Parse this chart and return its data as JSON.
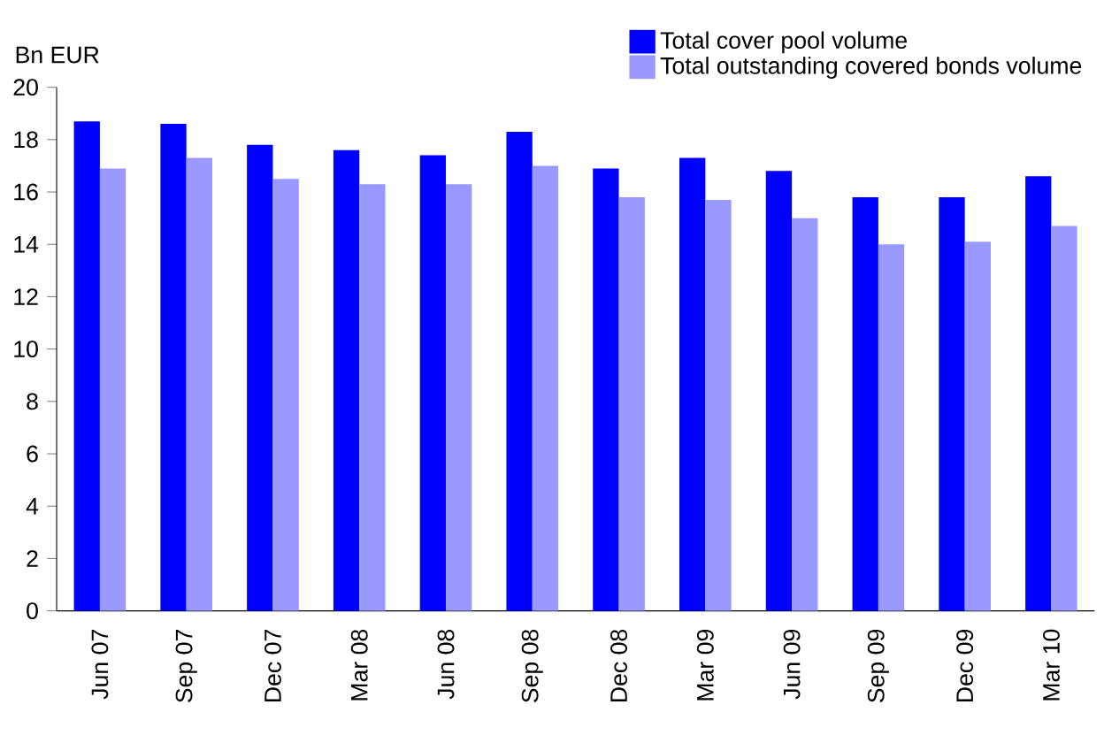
{
  "chart_data": {
    "type": "bar",
    "ylabel": "Bn EUR",
    "categories": [
      "Jun 07",
      "Sep 07",
      "Dec 07",
      "Mar 08",
      "Jun 08",
      "Sep 08",
      "Dec 08",
      "Mar 09",
      "Jun 09",
      "Sep 09",
      "Dec 09",
      "Mar 10"
    ],
    "series": [
      {
        "name": "Total cover pool volume",
        "color": "#0000ff",
        "values": [
          18.7,
          18.6,
          17.8,
          17.6,
          17.4,
          18.3,
          16.9,
          17.3,
          16.8,
          15.8,
          15.8,
          16.6
        ]
      },
      {
        "name": "Total outstanding covered bonds volume",
        "color": "#9999ff",
        "values": [
          16.9,
          17.3,
          16.5,
          16.3,
          16.3,
          17.0,
          15.8,
          15.7,
          15.0,
          14.0,
          14.1,
          14.7
        ]
      }
    ],
    "ylim": [
      0,
      20
    ],
    "yticks": [
      0,
      2,
      4,
      6,
      8,
      10,
      12,
      14,
      16,
      18,
      20
    ],
    "grid": false,
    "legend": "top right"
  }
}
